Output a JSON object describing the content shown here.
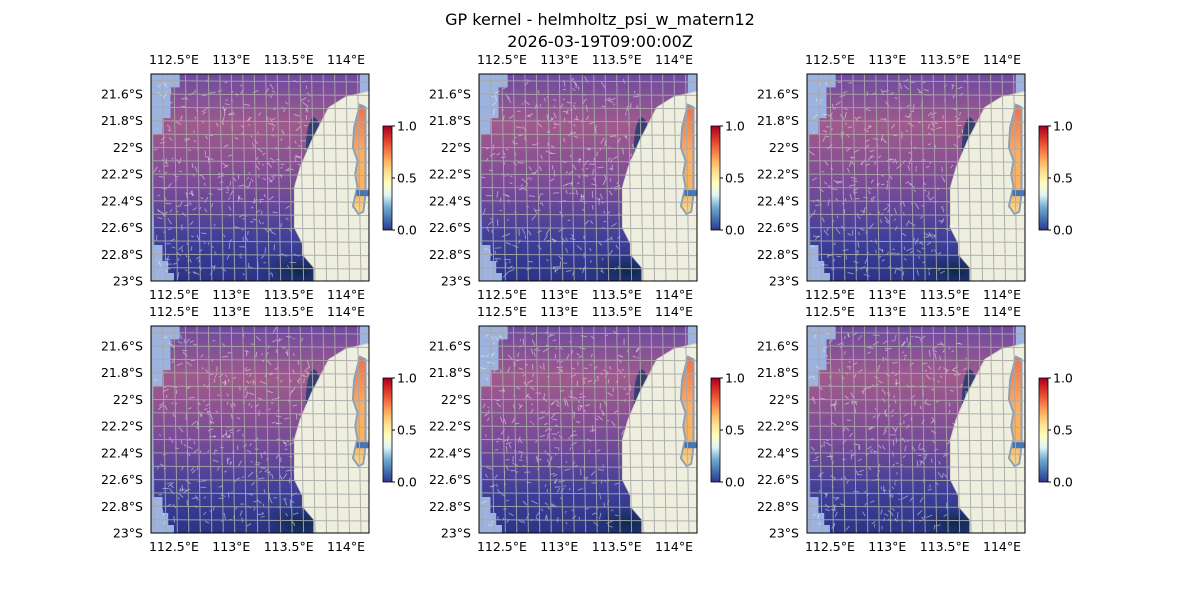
{
  "figure": {
    "title_line1": "GP kernel - helmholtz_psi_w_matern12",
    "title_line2": "2026-03-19T09:00:00Z"
  },
  "colors": {
    "ocean": "#a6bddb",
    "ocean_mask": "#9bb3de",
    "land": "#efefdf",
    "coast": "#8ea0b8",
    "grid": "#a9a9a9",
    "field_low": "#1b3a6e",
    "field_mid": "#7a4a98",
    "field_high": "#a05a8c",
    "colormap": [
      "#313695",
      "#4575b4",
      "#74add1",
      "#e0f3f8",
      "#ffffbf",
      "#fee090",
      "#fdae61",
      "#f46d43",
      "#d73027",
      "#a50026"
    ]
  },
  "chart_data": [
    {
      "type": "heatmap",
      "panel": "top-left",
      "xlim": [
        112.3,
        114.2
      ],
      "ylim": [
        -23.0,
        -21.45
      ],
      "xticks": [
        "112.5°E",
        "113°E",
        "113.5°E",
        "114°E"
      ],
      "xtick_values": [
        112.5,
        113.0,
        113.5,
        114.0
      ],
      "yticks": [
        "21.6°S",
        "21.8°S",
        "22°S",
        "22.2°S",
        "22.4°S",
        "22.6°S",
        "22.8°S",
        "23°S"
      ],
      "ytick_values": [
        -21.6,
        -21.8,
        -22.0,
        -22.2,
        -22.4,
        -22.6,
        -22.8,
        -23.0
      ],
      "colorbar": {
        "range": [
          0.0,
          1.0
        ],
        "ticks": [
          "0.0",
          "0.5",
          "1.0"
        ]
      },
      "gridlines": true,
      "quiver": true
    },
    {
      "type": "heatmap",
      "panel": "top-center",
      "xlim": [
        112.3,
        114.2
      ],
      "ylim": [
        -23.0,
        -21.45
      ],
      "xticks": [
        "112.5°E",
        "113°E",
        "113.5°E",
        "114°E"
      ],
      "xtick_values": [
        112.5,
        113.0,
        113.5,
        114.0
      ],
      "yticks": [
        "21.6°S",
        "21.8°S",
        "22°S",
        "22.2°S",
        "22.4°S",
        "22.6°S",
        "22.8°S",
        "23°S"
      ],
      "ytick_values": [
        -21.6,
        -21.8,
        -22.0,
        -22.2,
        -22.4,
        -22.6,
        -22.8,
        -23.0
      ],
      "colorbar": {
        "range": [
          0.0,
          1.0
        ],
        "ticks": [
          "0.0",
          "0.5",
          "1.0"
        ]
      },
      "gridlines": true,
      "quiver": true
    },
    {
      "type": "heatmap",
      "panel": "top-right",
      "xlim": [
        112.3,
        114.2
      ],
      "ylim": [
        -23.0,
        -21.45
      ],
      "xticks": [
        "112.5°E",
        "113°E",
        "113.5°E",
        "114°E"
      ],
      "xtick_values": [
        112.5,
        113.0,
        113.5,
        114.0
      ],
      "yticks": [
        "21.6°S",
        "21.8°S",
        "22°S",
        "22.2°S",
        "22.4°S",
        "22.6°S",
        "22.8°S",
        "23°S"
      ],
      "ytick_values": [
        -21.6,
        -21.8,
        -22.0,
        -22.2,
        -22.4,
        -22.6,
        -22.8,
        -23.0
      ],
      "colorbar": {
        "range": [
          0.0,
          1.0
        ],
        "ticks": [
          "0.0",
          "0.5",
          "1.0"
        ]
      },
      "gridlines": true,
      "quiver": true
    },
    {
      "type": "heatmap",
      "panel": "bottom-left",
      "xlim": [
        112.3,
        114.2
      ],
      "ylim": [
        -23.0,
        -21.45
      ],
      "xticks": [
        "112.5°E",
        "113°E",
        "113.5°E",
        "114°E"
      ],
      "xtick_values": [
        112.5,
        113.0,
        113.5,
        114.0
      ],
      "yticks": [
        "21.6°S",
        "21.8°S",
        "22°S",
        "22.2°S",
        "22.4°S",
        "22.6°S",
        "22.8°S",
        "23°S"
      ],
      "ytick_values": [
        -21.6,
        -21.8,
        -22.0,
        -22.2,
        -22.4,
        -22.6,
        -22.8,
        -23.0
      ],
      "colorbar": {
        "range": [
          0.0,
          1.0
        ],
        "ticks": [
          "0.0",
          "0.5",
          "1.0"
        ]
      },
      "gridlines": true,
      "quiver": true
    },
    {
      "type": "heatmap",
      "panel": "bottom-center",
      "xlim": [
        112.3,
        114.2
      ],
      "ylim": [
        -23.0,
        -21.45
      ],
      "xticks": [
        "112.5°E",
        "113°E",
        "113.5°E",
        "114°E"
      ],
      "xtick_values": [
        112.5,
        113.0,
        113.5,
        114.0
      ],
      "yticks": [
        "21.6°S",
        "21.8°S",
        "22°S",
        "22.2°S",
        "22.4°S",
        "22.6°S",
        "22.8°S",
        "23°S"
      ],
      "ytick_values": [
        -21.6,
        -21.8,
        -22.0,
        -22.2,
        -22.4,
        -22.6,
        -22.8,
        -23.0
      ],
      "colorbar": {
        "range": [
          0.0,
          1.0
        ],
        "ticks": [
          "0.0",
          "0.5",
          "1.0"
        ]
      },
      "gridlines": true,
      "quiver": true
    },
    {
      "type": "heatmap",
      "panel": "bottom-right",
      "xlim": [
        112.3,
        114.2
      ],
      "ylim": [
        -23.0,
        -21.45
      ],
      "xticks": [
        "112.5°E",
        "113°E",
        "113.5°E",
        "114°E"
      ],
      "xtick_values": [
        112.5,
        113.0,
        113.5,
        114.0
      ],
      "yticks": [
        "21.6°S",
        "21.8°S",
        "22°S",
        "22.2°S",
        "22.4°S",
        "22.6°S",
        "22.8°S",
        "23°S"
      ],
      "ytick_values": [
        -21.6,
        -21.8,
        -22.0,
        -22.2,
        -22.4,
        -22.6,
        -22.8,
        -23.0
      ],
      "colorbar": {
        "range": [
          0.0,
          1.0
        ],
        "ticks": [
          "0.0",
          "0.5",
          "1.0"
        ]
      },
      "gridlines": true,
      "quiver": true
    }
  ]
}
